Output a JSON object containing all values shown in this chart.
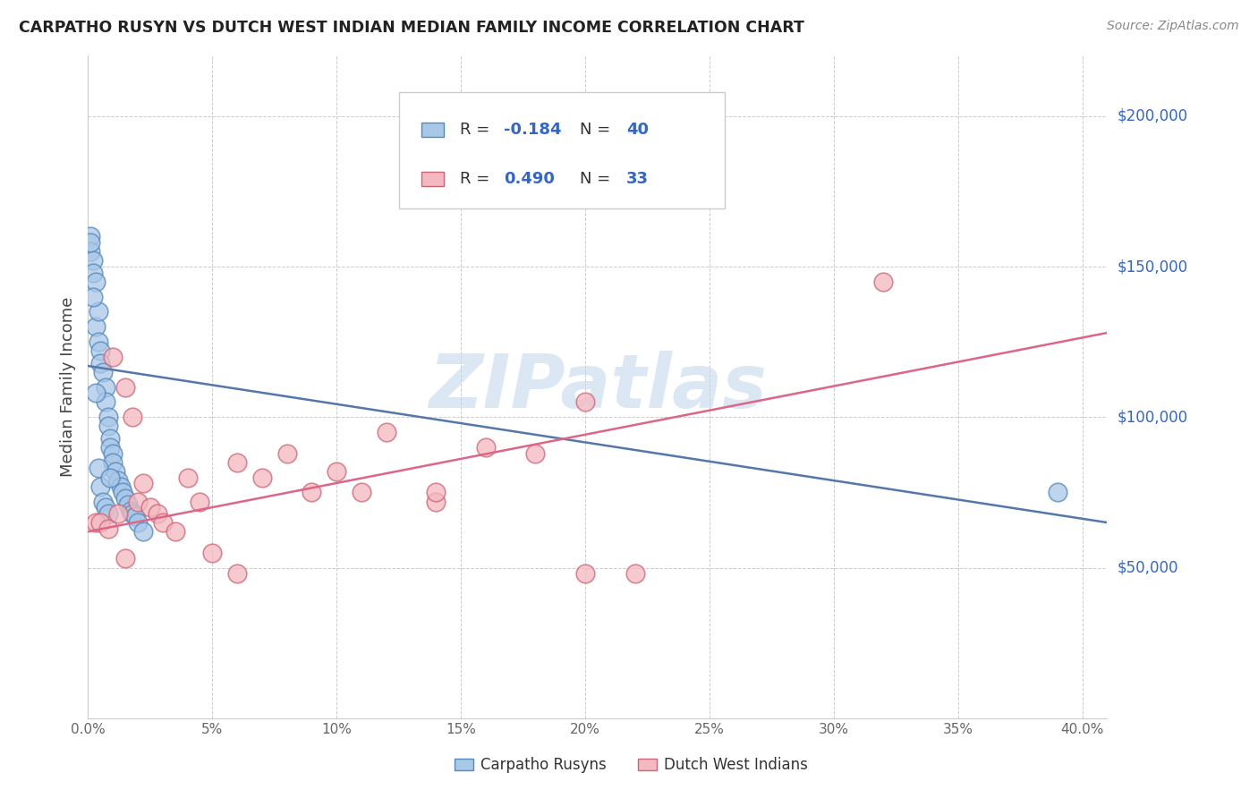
{
  "title": "CARPATHO RUSYN VS DUTCH WEST INDIAN MEDIAN FAMILY INCOME CORRELATION CHART",
  "source": "Source: ZipAtlas.com",
  "ylabel": "Median Family Income",
  "ytick_labels": [
    "$50,000",
    "$100,000",
    "$150,000",
    "$200,000"
  ],
  "ytick_values": [
    50000,
    100000,
    150000,
    200000
  ],
  "ylim": [
    0,
    220000
  ],
  "xlim": [
    0.0,
    0.41
  ],
  "blue_R": "-0.184",
  "blue_N": "40",
  "pink_R": "0.490",
  "pink_N": "33",
  "blue_fill": "#a8c8e8",
  "pink_fill": "#f4b8c0",
  "blue_edge": "#5588bb",
  "pink_edge": "#cc6677",
  "blue_line": "#5577aa",
  "pink_line": "#dd6688",
  "text_color_dark": "#333344",
  "text_color_blue": "#3366cc",
  "text_color_source": "#888888",
  "legend_label_blue": "Carpatho Rusyns",
  "legend_label_pink": "Dutch West Indians",
  "watermark": "ZIPatlas",
  "watermark_color": "#c5d8ee",
  "blue_scatter_x": [
    0.001,
    0.001,
    0.002,
    0.002,
    0.003,
    0.003,
    0.004,
    0.004,
    0.005,
    0.005,
    0.006,
    0.007,
    0.007,
    0.008,
    0.008,
    0.009,
    0.009,
    0.01,
    0.01,
    0.011,
    0.012,
    0.013,
    0.014,
    0.015,
    0.016,
    0.017,
    0.018,
    0.019,
    0.02,
    0.022,
    0.001,
    0.002,
    0.003,
    0.004,
    0.005,
    0.006,
    0.007,
    0.008,
    0.009,
    0.39
  ],
  "blue_scatter_y": [
    160000,
    155000,
    152000,
    148000,
    145000,
    130000,
    135000,
    125000,
    122000,
    118000,
    115000,
    110000,
    105000,
    100000,
    97000,
    93000,
    90000,
    88000,
    85000,
    82000,
    79000,
    77000,
    75000,
    73000,
    71000,
    69000,
    68000,
    67000,
    65000,
    62000,
    158000,
    140000,
    108000,
    83000,
    77000,
    72000,
    70000,
    68000,
    80000,
    75000
  ],
  "pink_scatter_x": [
    0.003,
    0.005,
    0.008,
    0.01,
    0.012,
    0.015,
    0.018,
    0.02,
    0.022,
    0.025,
    0.028,
    0.03,
    0.035,
    0.04,
    0.045,
    0.05,
    0.06,
    0.07,
    0.08,
    0.09,
    0.1,
    0.11,
    0.12,
    0.14,
    0.16,
    0.18,
    0.14,
    0.2,
    0.2,
    0.32,
    0.015,
    0.06,
    0.22
  ],
  "pink_scatter_y": [
    65000,
    65000,
    63000,
    120000,
    68000,
    110000,
    100000,
    72000,
    78000,
    70000,
    68000,
    65000,
    62000,
    80000,
    72000,
    55000,
    85000,
    80000,
    88000,
    75000,
    82000,
    75000,
    95000,
    72000,
    90000,
    88000,
    75000,
    105000,
    48000,
    145000,
    53000,
    48000,
    48000
  ],
  "blue_line_x": [
    0.0,
    0.41
  ],
  "blue_line_y": [
    117000,
    65000
  ],
  "pink_line_x": [
    0.0,
    0.41
  ],
  "pink_line_y": [
    62000,
    128000
  ],
  "x_tick_vals": [
    0.0,
    0.05,
    0.1,
    0.15,
    0.2,
    0.25,
    0.3,
    0.35,
    0.4
  ],
  "x_tick_lbls": [
    "0.0%",
    "5%",
    "10%",
    "15%",
    "20%",
    "25%",
    "30%",
    "35%",
    "40.0%"
  ]
}
